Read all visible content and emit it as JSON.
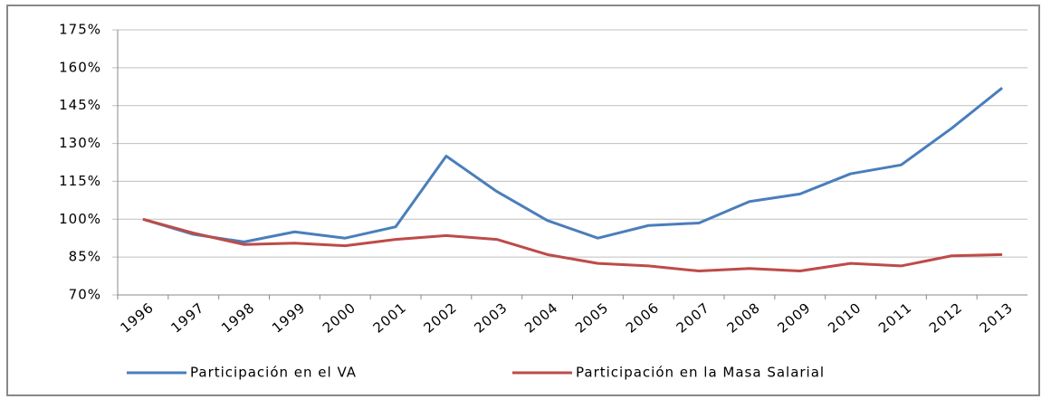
{
  "chart_data": {
    "type": "line",
    "categories": [
      "1996",
      "1997",
      "1998",
      "1999",
      "2000",
      "2001",
      "2002",
      "2003",
      "2004",
      "2005",
      "2006",
      "2007",
      "2008",
      "2009",
      "2010",
      "2011",
      "2012",
      "2013"
    ],
    "series": [
      {
        "name": "Participación en el VA",
        "color": "#4a7ebb",
        "values": [
          100,
          94,
          91,
          95,
          92.5,
          97,
          125,
          111,
          99.5,
          92.5,
          97.5,
          98.5,
          107,
          110,
          118,
          121.5,
          136,
          152
        ]
      },
      {
        "name": "Participación en la Masa Salarial",
        "color": "#be4b48",
        "values": [
          100,
          94.5,
          90,
          90.5,
          89.5,
          92,
          93.5,
          92,
          86,
          82.5,
          81.5,
          79.5,
          80.5,
          79.5,
          82.5,
          81.5,
          85.5,
          86
        ]
      }
    ],
    "ylim": [
      70,
      175
    ],
    "yticks": [
      {
        "value": 70,
        "label": "70%"
      },
      {
        "value": 85,
        "label": "85%"
      },
      {
        "value": 100,
        "label": "100%"
      },
      {
        "value": 115,
        "label": "115%"
      },
      {
        "value": 130,
        "label": "130%"
      },
      {
        "value": 145,
        "label": "145%"
      },
      {
        "value": 160,
        "label": "160%"
      },
      {
        "value": 175,
        "label": "175%"
      }
    ],
    "grid": true,
    "legend": "bottom"
  }
}
